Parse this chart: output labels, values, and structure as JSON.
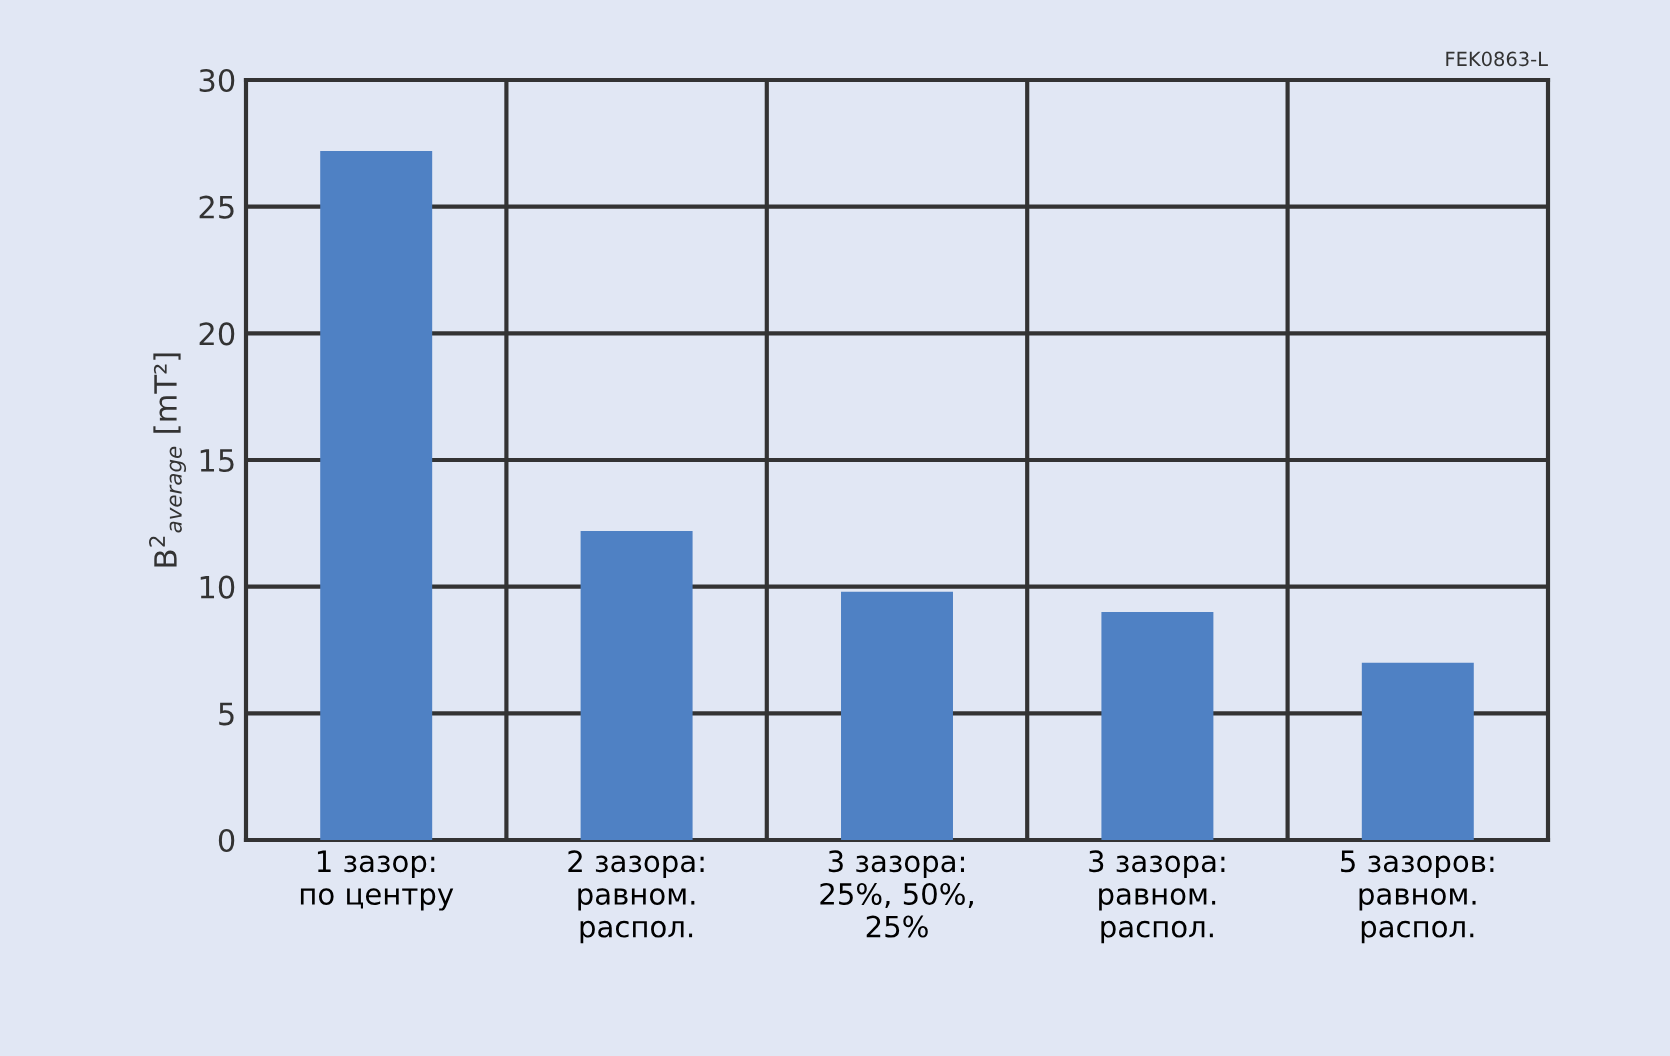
{
  "chart_data": {
    "type": "bar",
    "categories": [
      "1 зазор:\nпо центру",
      "2 зазора:\nравном.\nраспол.",
      "3 зазора:\n25%, 50%,\n25%",
      "3 зазора:\nравном.\nраспол.",
      "5 зазоров:\nравном.\nраспол."
    ],
    "values": [
      27.2,
      12.2,
      9.8,
      9.0,
      7.0
    ],
    "color": "#4f81c4",
    "ylabel": "B$^{2}$$_{average}$ [mT²]",
    "ylim": [
      0,
      30
    ],
    "yticks": [
      0,
      5,
      10,
      15,
      20,
      25,
      30
    ],
    "grid": true,
    "annotations": [
      "FEK0863-L"
    ]
  }
}
